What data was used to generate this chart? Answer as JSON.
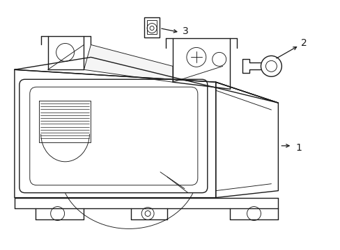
{
  "bg_color": "#ffffff",
  "line_color": "#1a1a1a",
  "lw": 1.0,
  "tlw": 0.65,
  "figsize": [
    4.89,
    3.6
  ],
  "dpi": 100
}
